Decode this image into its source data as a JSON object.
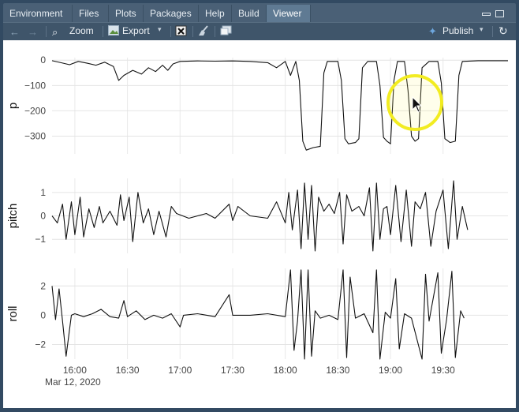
{
  "tabs": [
    "Environment",
    "Files",
    "Plots",
    "Packages",
    "Help",
    "Build",
    "Viewer"
  ],
  "active_tab": "Viewer",
  "toolbar": {
    "zoom_label": "Zoom",
    "export_label": "Export",
    "publish_label": "Publish"
  },
  "icons": [
    "back-arrow-icon",
    "forward-arrow-icon",
    "zoom-icon",
    "export-icon",
    "clear-icon",
    "broom-icon",
    "new-window-icon",
    "publish-icon",
    "refresh-icon",
    "minimize-icon",
    "maximize-icon",
    "mouse-cursor-icon"
  ],
  "chart_data": {
    "type": "line",
    "title": "",
    "xlabel": "",
    "x_ticks": [
      "16:00",
      "16:30",
      "17:00",
      "17:30",
      "18:00",
      "18:30",
      "19:00",
      "19:30"
    ],
    "x_date_label": "Mar 12, 2020",
    "x_range": [
      "15:47",
      "20:07"
    ],
    "grid": true,
    "legend": "none",
    "panels": [
      {
        "name": "p",
        "ylabel": "p",
        "y_ticks": [
          "0",
          "−100",
          "−200",
          "−300"
        ],
        "ylim": [
          -370,
          10
        ],
        "points": [
          [
            "15:47",
            -2
          ],
          [
            "15:52",
            -10
          ],
          [
            "15:57",
            -18
          ],
          [
            "16:02",
            -5
          ],
          [
            "16:07",
            -12
          ],
          [
            "16:12",
            -20
          ],
          [
            "16:17",
            -8
          ],
          [
            "16:22",
            -25
          ],
          [
            "16:25",
            -80
          ],
          [
            "16:28",
            -60
          ],
          [
            "16:33",
            -40
          ],
          [
            "16:38",
            -55
          ],
          [
            "16:42",
            -30
          ],
          [
            "16:46",
            -45
          ],
          [
            "16:50",
            -20
          ],
          [
            "16:53",
            -40
          ],
          [
            "16:56",
            -15
          ],
          [
            "17:00",
            -5
          ],
          [
            "17:10",
            -3
          ],
          [
            "17:20",
            -4
          ],
          [
            "17:30",
            -3
          ],
          [
            "17:40",
            -5
          ],
          [
            "17:50",
            -10
          ],
          [
            "17:55",
            -30
          ],
          [
            "18:00",
            -5
          ],
          [
            "18:03",
            -60
          ],
          [
            "18:06",
            -5
          ],
          [
            "18:08",
            -80
          ],
          [
            "18:10",
            -320
          ],
          [
            "18:12",
            -355
          ],
          [
            "18:16",
            -345
          ],
          [
            "18:20",
            -340
          ],
          [
            "18:22",
            -50
          ],
          [
            "18:24",
            -5
          ],
          [
            "18:30",
            -5
          ],
          [
            "18:32",
            -80
          ],
          [
            "18:34",
            -310
          ],
          [
            "18:36",
            -330
          ],
          [
            "18:40",
            -325
          ],
          [
            "18:42",
            -310
          ],
          [
            "18:44",
            -30
          ],
          [
            "18:47",
            -5
          ],
          [
            "18:52",
            -5
          ],
          [
            "18:54",
            -100
          ],
          [
            "18:56",
            -305
          ],
          [
            "18:58",
            -320
          ],
          [
            "19:00",
            -330
          ],
          [
            "19:02",
            -80
          ],
          [
            "19:04",
            -5
          ],
          [
            "19:08",
            -5
          ],
          [
            "19:10",
            -120
          ],
          [
            "19:12",
            -300
          ],
          [
            "19:14",
            -320
          ],
          [
            "19:16",
            -310
          ],
          [
            "19:18",
            -30
          ],
          [
            "19:22",
            -5
          ],
          [
            "19:27",
            -5
          ],
          [
            "19:29",
            -90
          ],
          [
            "19:31",
            -310
          ],
          [
            "19:34",
            -325
          ],
          [
            "19:37",
            -320
          ],
          [
            "19:39",
            -60
          ],
          [
            "19:41",
            -5
          ],
          [
            "19:50",
            -2
          ],
          [
            "20:00",
            -2
          ],
          [
            "20:07",
            -2
          ]
        ]
      },
      {
        "name": "pitch",
        "ylabel": "pitch",
        "y_ticks": [
          "1",
          "0",
          "−1"
        ],
        "ylim": [
          -1.6,
          1.6
        ],
        "points": [
          [
            "15:47",
            0
          ],
          [
            "15:50",
            -0.3
          ],
          [
            "15:53",
            0.5
          ],
          [
            "15:55",
            -1.0
          ],
          [
            "15:58",
            0.6
          ],
          [
            "16:00",
            -0.8
          ],
          [
            "16:03",
            0.8
          ],
          [
            "16:05",
            -0.9
          ],
          [
            "16:08",
            0.3
          ],
          [
            "16:11",
            -0.5
          ],
          [
            "16:14",
            0.4
          ],
          [
            "16:16",
            -0.3
          ],
          [
            "16:20",
            0.2
          ],
          [
            "16:24",
            -0.4
          ],
          [
            "16:26",
            0.9
          ],
          [
            "16:28",
            -0.2
          ],
          [
            "16:31",
            0.8
          ],
          [
            "16:33",
            -1.1
          ],
          [
            "16:36",
            1.0
          ],
          [
            "16:39",
            -0.3
          ],
          [
            "16:42",
            0.3
          ],
          [
            "16:45",
            -0.8
          ],
          [
            "16:48",
            0.2
          ],
          [
            "16:52",
            -0.9
          ],
          [
            "16:55",
            0.4
          ],
          [
            "16:58",
            0.1
          ],
          [
            "17:05",
            -0.1
          ],
          [
            "17:15",
            0.1
          ],
          [
            "17:20",
            -0.1
          ],
          [
            "17:28",
            0.5
          ],
          [
            "17:30",
            -0.2
          ],
          [
            "17:33",
            0.4
          ],
          [
            "17:40",
            0
          ],
          [
            "17:50",
            -0.1
          ],
          [
            "17:55",
            0.6
          ],
          [
            "18:00",
            -0.3
          ],
          [
            "18:02",
            1.0
          ],
          [
            "18:04",
            -0.6
          ],
          [
            "18:07",
            1.1
          ],
          [
            "18:09",
            -1.4
          ],
          [
            "18:11",
            1.4
          ],
          [
            "18:13",
            -1.0
          ],
          [
            "18:15",
            1.3
          ],
          [
            "18:17",
            -1.5
          ],
          [
            "18:19",
            0.8
          ],
          [
            "18:22",
            0.2
          ],
          [
            "18:25",
            0.5
          ],
          [
            "18:28",
            0.1
          ],
          [
            "18:31",
            1.0
          ],
          [
            "18:33",
            -1.2
          ],
          [
            "18:35",
            0.9
          ],
          [
            "18:38",
            0.2
          ],
          [
            "18:42",
            0.4
          ],
          [
            "18:45",
            0
          ],
          [
            "18:48",
            1.2
          ],
          [
            "18:50",
            -1.5
          ],
          [
            "18:52",
            1.4
          ],
          [
            "18:54",
            -1.0
          ],
          [
            "18:56",
            0.3
          ],
          [
            "18:58",
            0.4
          ],
          [
            "19:00",
            -0.8
          ],
          [
            "19:03",
            1.3
          ],
          [
            "19:06",
            -1.1
          ],
          [
            "19:09",
            1.1
          ],
          [
            "19:12",
            -1.3
          ],
          [
            "19:14",
            0.6
          ],
          [
            "19:17",
            0.3
          ],
          [
            "19:20",
            1.0
          ],
          [
            "19:23",
            -1.3
          ],
          [
            "19:26",
            0.2
          ],
          [
            "19:30",
            1.1
          ],
          [
            "19:33",
            -1.4
          ],
          [
            "19:36",
            1.5
          ],
          [
            "19:38",
            -1.0
          ],
          [
            "19:41",
            0.4
          ],
          [
            "19:44",
            -0.6
          ]
        ]
      },
      {
        "name": "roll",
        "ylabel": "roll",
        "y_ticks": [
          "2",
          "0",
          "−2"
        ],
        "ylim": [
          -3,
          3.2
        ],
        "points": [
          [
            "15:47",
            2.0
          ],
          [
            "15:49",
            -0.3
          ],
          [
            "15:51",
            1.8
          ],
          [
            "15:53",
            -0.4
          ],
          [
            "15:55",
            -2.8
          ],
          [
            "15:58",
            0
          ],
          [
            "16:00",
            0.1
          ],
          [
            "16:05",
            -0.1
          ],
          [
            "16:10",
            0.1
          ],
          [
            "16:15",
            0.4
          ],
          [
            "16:20",
            -0.1
          ],
          [
            "16:25",
            -0.2
          ],
          [
            "16:28",
            1.0
          ],
          [
            "16:30",
            -0.1
          ],
          [
            "16:35",
            0.3
          ],
          [
            "16:40",
            -0.3
          ],
          [
            "16:45",
            0
          ],
          [
            "16:50",
            -0.2
          ],
          [
            "16:55",
            0.1
          ],
          [
            "17:00",
            -0.8
          ],
          [
            "17:02",
            0
          ],
          [
            "17:10",
            0.1
          ],
          [
            "17:20",
            -0.1
          ],
          [
            "17:28",
            1.4
          ],
          [
            "17:30",
            0
          ],
          [
            "17:40",
            0
          ],
          [
            "17:50",
            0.1
          ],
          [
            "18:00",
            -0.1
          ],
          [
            "18:03",
            3.1
          ],
          [
            "18:05",
            -2.4
          ],
          [
            "18:07",
            -0.4
          ],
          [
            "18:09",
            3.1
          ],
          [
            "18:11",
            -3.0
          ],
          [
            "18:13",
            3.1
          ],
          [
            "18:15",
            -2.8
          ],
          [
            "18:17",
            0.3
          ],
          [
            "18:20",
            -0.2
          ],
          [
            "18:25",
            0
          ],
          [
            "18:30",
            -0.3
          ],
          [
            "18:33",
            3.1
          ],
          [
            "18:35",
            -2.9
          ],
          [
            "18:37",
            2.6
          ],
          [
            "18:40",
            -0.2
          ],
          [
            "18:45",
            0.1
          ],
          [
            "18:50",
            -1.2
          ],
          [
            "18:52",
            3.1
          ],
          [
            "18:54",
            -3.0
          ],
          [
            "18:57",
            0.2
          ],
          [
            "19:00",
            -0.2
          ],
          [
            "19:03",
            2.5
          ],
          [
            "19:05",
            -2.3
          ],
          [
            "19:08",
            0.1
          ],
          [
            "19:12",
            -0.2
          ],
          [
            "19:18",
            -3.0
          ],
          [
            "19:20",
            2.8
          ],
          [
            "19:22",
            -0.4
          ],
          [
            "19:27",
            2.9
          ],
          [
            "19:29",
            -2.6
          ],
          [
            "19:32",
            -0.3
          ],
          [
            "19:35",
            3.0
          ],
          [
            "19:37",
            -2.9
          ],
          [
            "19:40",
            0.3
          ],
          [
            "19:42",
            -0.2
          ]
        ]
      }
    ]
  }
}
